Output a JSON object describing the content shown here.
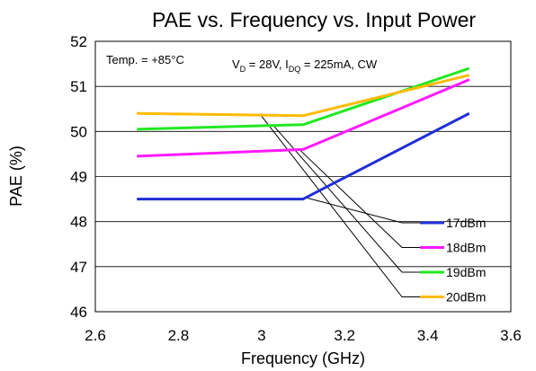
{
  "chart_data": {
    "type": "line",
    "title": "PAE vs. Frequency vs. Input Power",
    "xlabel": "Frequency (GHz)",
    "ylabel": "PAE (%)",
    "xlim": [
      2.6,
      3.6
    ],
    "ylim": [
      46,
      52
    ],
    "xticks": [
      "2.6",
      "2.8",
      "3",
      "3.2",
      "3.4",
      "3.6"
    ],
    "yticks": [
      "46",
      "47",
      "48",
      "49",
      "50",
      "51",
      "52"
    ],
    "grid": "horizontal",
    "legend": "bottom-right, with leader lines to curves",
    "annotations": {
      "temp": "Temp. = +85°C",
      "cond_v": "V",
      "cond_v_sub": "D",
      "cond_mid": " = 28V, I",
      "cond_i_sub": "DQ",
      "cond_end": " = 225mA, CW"
    },
    "series": [
      {
        "name": "17dBm",
        "color": "#1f2fd6",
        "x": [
          2.7,
          3.1,
          3.5
        ],
        "y": [
          48.5,
          48.5,
          50.4
        ]
      },
      {
        "name": "18dBm",
        "color": "#ff1aff",
        "x": [
          2.7,
          3.1,
          3.5
        ],
        "y": [
          49.45,
          49.6,
          51.15
        ]
      },
      {
        "name": "19dBm",
        "color": "#22e822",
        "x": [
          2.7,
          3.1,
          3.5
        ],
        "y": [
          50.05,
          50.15,
          51.4
        ]
      },
      {
        "name": "20dBm",
        "color": "#ffbb00",
        "x": [
          2.7,
          3.1,
          3.5
        ],
        "y": [
          50.4,
          50.35,
          51.25
        ]
      }
    ]
  }
}
